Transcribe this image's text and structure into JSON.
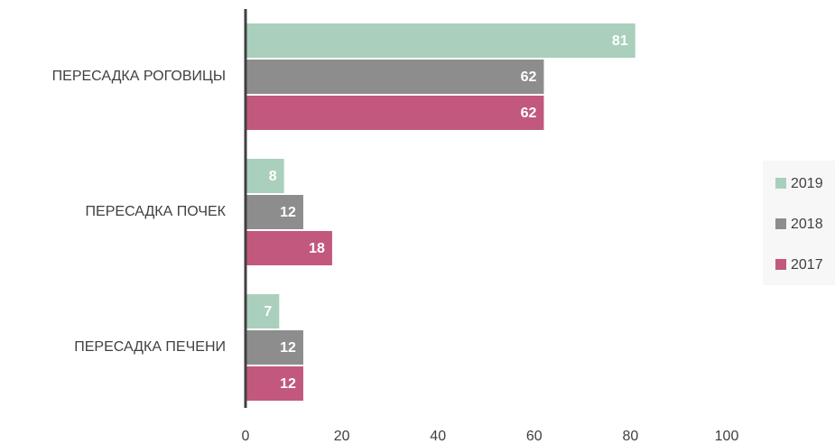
{
  "chart_data": {
    "type": "hbar",
    "categories": [
      "ПЕРЕСАДКА РОГОВИЦЫ",
      "ПЕРЕСАДКА ПОЧЕК",
      "ПЕРЕСАДКА ПЕЧЕНИ"
    ],
    "series": [
      {
        "name": "2019",
        "color": "#aacfbd",
        "values": [
          81,
          8,
          7
        ]
      },
      {
        "name": "2018",
        "color": "#8d8d8d",
        "values": [
          62,
          12,
          12
        ]
      },
      {
        "name": "2017",
        "color": "#c2587d",
        "values": [
          62,
          18,
          12
        ]
      }
    ],
    "xlim": [
      0,
      100
    ],
    "xticks": [
      0,
      20,
      40,
      60,
      80,
      100
    ],
    "grid": false,
    "legend": "right"
  }
}
